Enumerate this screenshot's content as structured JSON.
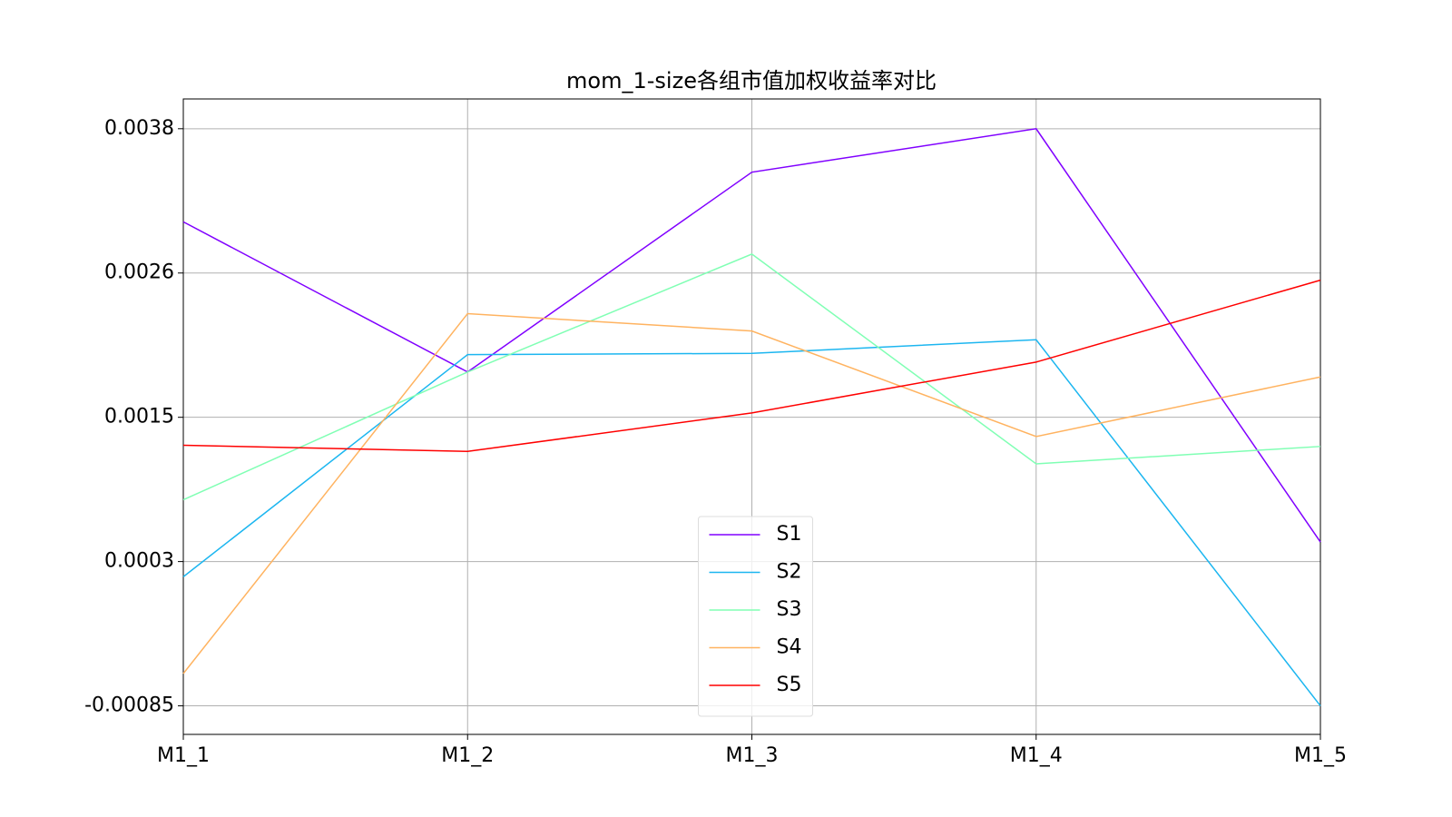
{
  "chart_data": {
    "type": "line",
    "title": "mom_1-size各组市值加权收益率对比",
    "categories": [
      "M1_1",
      "M1_2",
      "M1_3",
      "M1_4",
      "M1_5"
    ],
    "series": [
      {
        "name": "S1",
        "color": "#8000ff",
        "values": [
          0.00305,
          0.00184,
          0.00345,
          0.0038,
          0.00047
        ]
      },
      {
        "name": "S2",
        "color": "#1cb6f0",
        "values": [
          0.00019,
          0.00198,
          0.00199,
          0.0021,
          -0.00085
        ]
      },
      {
        "name": "S3",
        "color": "#80ffb4",
        "values": [
          0.00081,
          0.00184,
          0.00279,
          0.0011,
          0.00124
        ]
      },
      {
        "name": "S4",
        "color": "#ffb360",
        "values": [
          -0.00059,
          0.00231,
          0.00217,
          0.00132,
          0.0018
        ]
      },
      {
        "name": "S5",
        "color": "#ff0000",
        "values": [
          0.00125,
          0.0012,
          0.00151,
          0.00192,
          0.00258
        ]
      }
    ],
    "ylim": [
      -0.00108,
      0.00404
    ],
    "yticks": [
      -0.00085,
      {
        "value": 0.0003125,
        "label": "0.0003"
      },
      {
        "value": 0.001475,
        "label": "0.0015"
      },
      {
        "value": 0.0026375,
        "label": "0.0026"
      },
      0.0038
    ],
    "grid": true,
    "legend": "lower center"
  }
}
